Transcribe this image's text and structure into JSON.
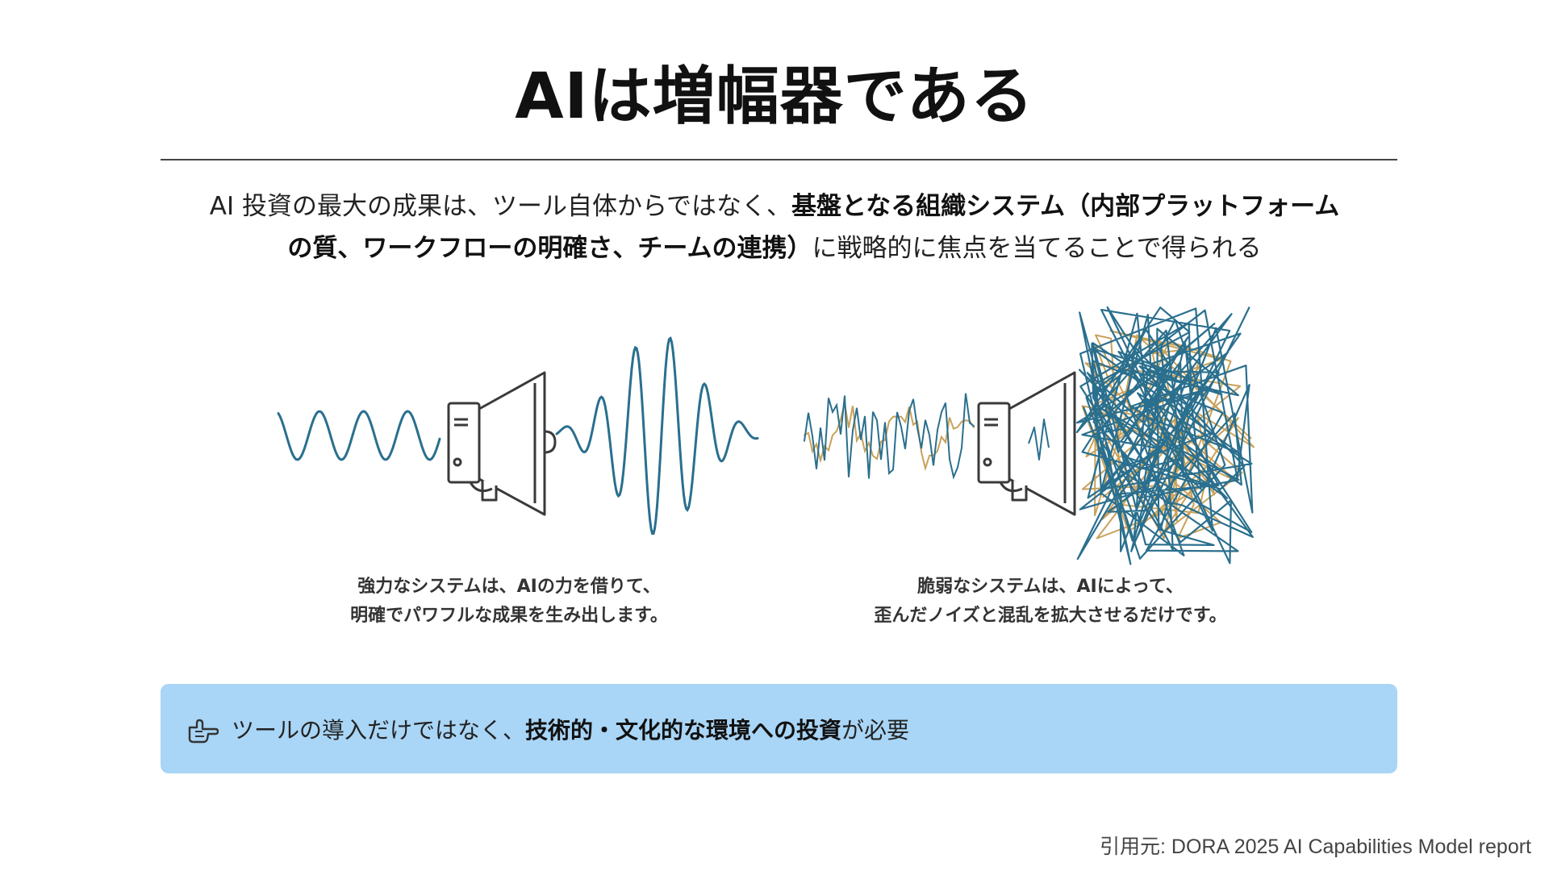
{
  "title": "AIは増幅器である",
  "lead": {
    "line1_pre": "AI 投資の最大の成果は、ツール自体からではなく、",
    "line1_bold": "基盤となる組織システム（内部プラットフォーム",
    "line2_bold": "の質、ワークフローの明確さ、チームの連携）",
    "line2_post": "に戦略的に焦点を当てることで得られる"
  },
  "captions": {
    "left_line1": "強力なシステムは、AIの力を借りて、",
    "left_line2": "明確でパワフルな成果を生み出します。",
    "right_line1": "脆弱なシステムは、AIによって、",
    "right_line2": "歪んだノイズと混乱を拡大させるだけです。"
  },
  "callout": {
    "icon": "pointing-hand-icon",
    "pre": "ツールの導入だけではなく、",
    "bold": "技術的・文化的な環境への投資",
    "post": "が必要"
  },
  "source": "引用元: DORA 2025 AI Capabilities Model report",
  "colors": {
    "wave": "#2a6f8e",
    "noise_orange": "#c9a15a",
    "line": "#3a3a3a",
    "callout_bg": "#a9d5f6"
  }
}
